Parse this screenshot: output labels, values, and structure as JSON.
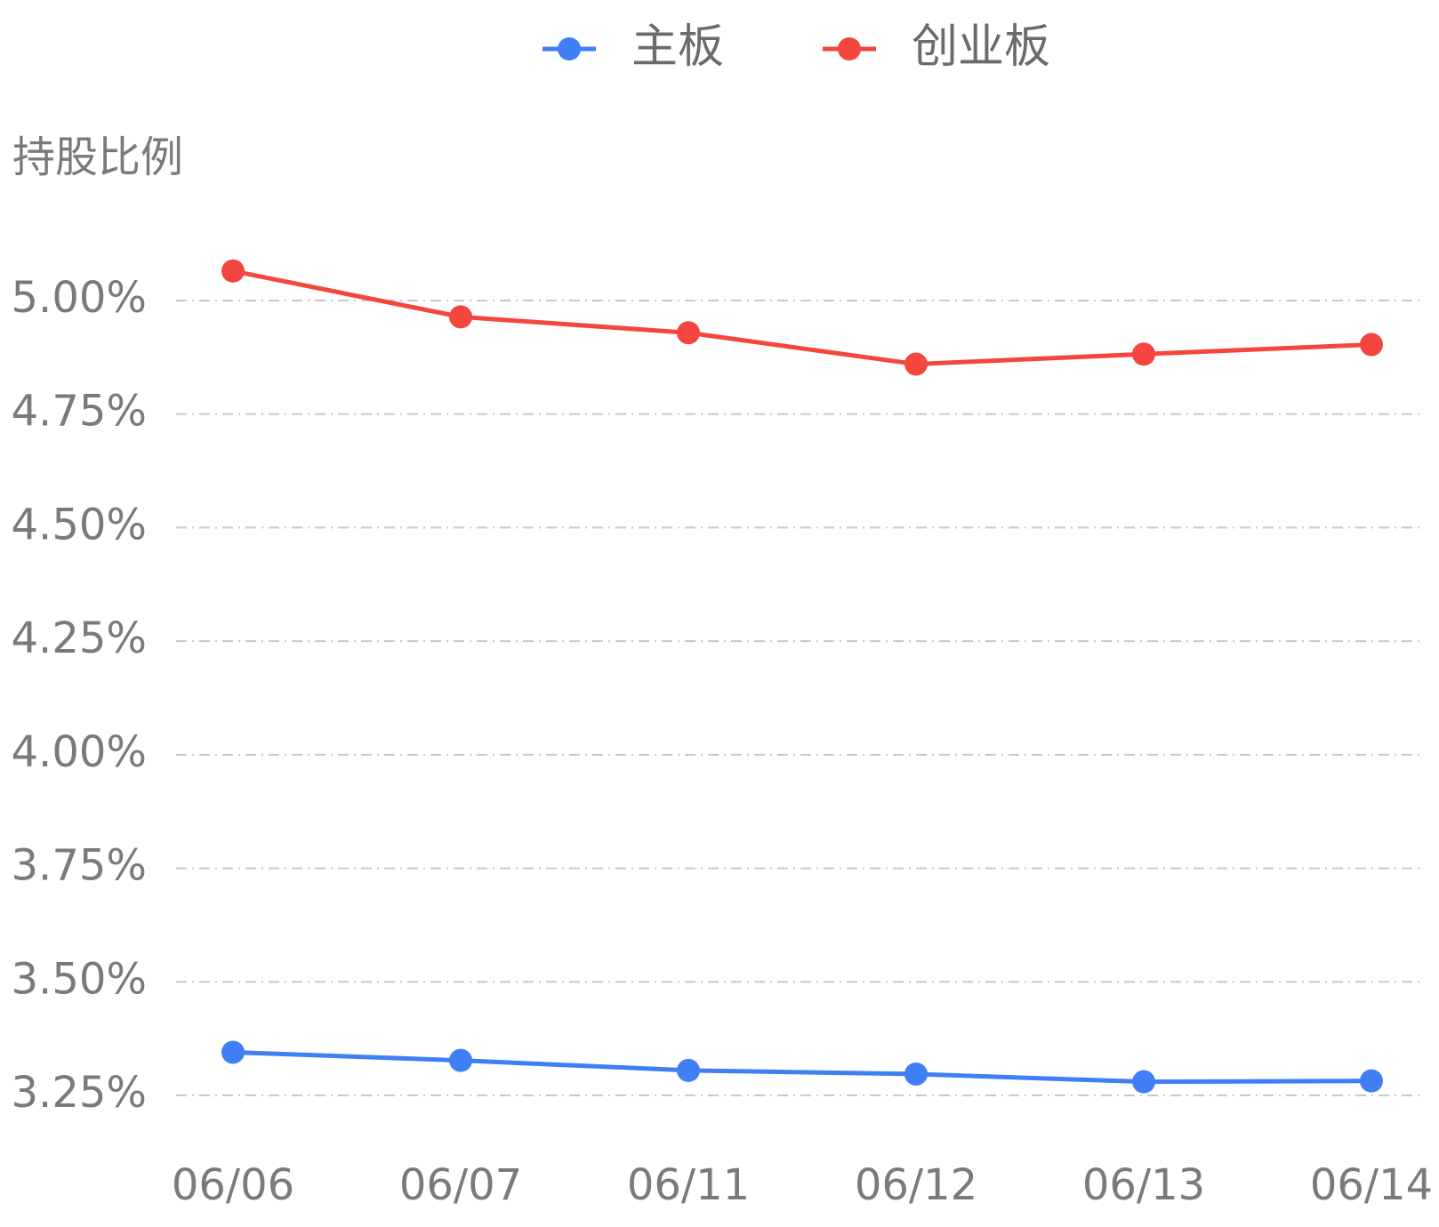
{
  "chart_data": {
    "type": "line",
    "y_axis_title": "持股比例",
    "categories": [
      "06/06",
      "06/07",
      "06/11",
      "06/12",
      "06/13",
      "06/14"
    ],
    "series": [
      {
        "name": "主板",
        "color": "#3f7ef5",
        "values": [
          3.345,
          3.327,
          3.305,
          3.297,
          3.28,
          3.282
        ]
      },
      {
        "name": "创业板",
        "color": "#f4463e",
        "values": [
          5.065,
          4.964,
          4.929,
          4.86,
          4.882,
          4.903
        ]
      }
    ],
    "ylim": [
      3.25,
      5.0
    ],
    "yticks": [
      {
        "value": 3.25,
        "label": "3.25%"
      },
      {
        "value": 3.5,
        "label": "3.50%"
      },
      {
        "value": 3.75,
        "label": "3.75%"
      },
      {
        "value": 4.0,
        "label": "4.00%"
      },
      {
        "value": 4.25,
        "label": "4.25%"
      },
      {
        "value": 4.5,
        "label": "4.50%"
      },
      {
        "value": 4.75,
        "label": "4.75%"
      },
      {
        "value": 5.0,
        "label": "5.00%"
      }
    ],
    "grid": true
  }
}
